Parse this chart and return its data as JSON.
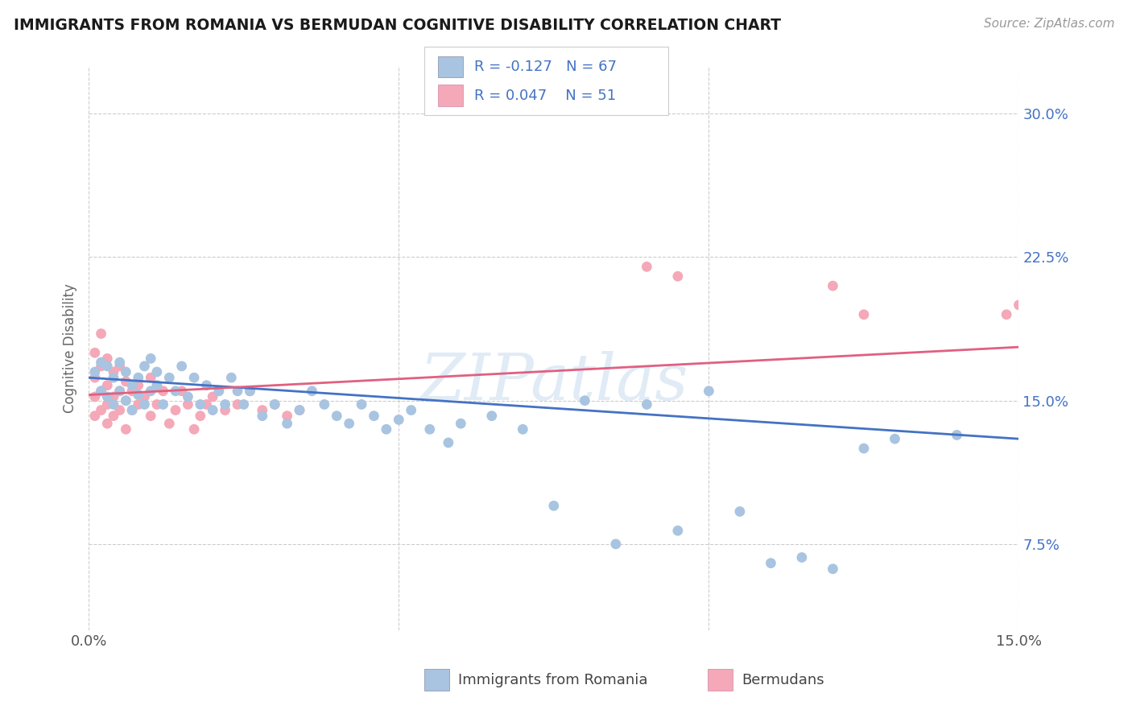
{
  "title": "IMMIGRANTS FROM ROMANIA VS BERMUDAN COGNITIVE DISABILITY CORRELATION CHART",
  "source": "Source: ZipAtlas.com",
  "ylabel": "Cognitive Disability",
  "xlim": [
    0.0,
    0.15
  ],
  "ylim": [
    0.03,
    0.325
  ],
  "xticks": [
    0.0,
    0.05,
    0.1,
    0.15
  ],
  "xticklabels": [
    "0.0%",
    "",
    "",
    "15.0%"
  ],
  "yticks": [
    0.075,
    0.15,
    0.225,
    0.3
  ],
  "yticklabels": [
    "7.5%",
    "15.0%",
    "22.5%",
    "30.0%"
  ],
  "color_romania": "#a8c4e0",
  "color_bermuda": "#f4a8b8",
  "trendline_romania_color": "#4472c4",
  "trendline_bermuda_color": "#e06080",
  "background_color": "#ffffff",
  "grid_color": "#cccccc",
  "romania_trendline": [
    0.162,
    0.13
  ],
  "bermuda_trendline": [
    0.153,
    0.178
  ],
  "romania_x": [
    0.001,
    0.002,
    0.002,
    0.003,
    0.003,
    0.004,
    0.004,
    0.005,
    0.005,
    0.006,
    0.006,
    0.007,
    0.007,
    0.008,
    0.008,
    0.009,
    0.009,
    0.01,
    0.01,
    0.011,
    0.011,
    0.012,
    0.013,
    0.014,
    0.015,
    0.016,
    0.017,
    0.018,
    0.019,
    0.02,
    0.021,
    0.022,
    0.023,
    0.024,
    0.025,
    0.026,
    0.028,
    0.03,
    0.032,
    0.034,
    0.036,
    0.038,
    0.04,
    0.042,
    0.044,
    0.046,
    0.048,
    0.05,
    0.052,
    0.055,
    0.058,
    0.06,
    0.065,
    0.07,
    0.075,
    0.08,
    0.085,
    0.09,
    0.095,
    0.1,
    0.105,
    0.11,
    0.115,
    0.12,
    0.125,
    0.13,
    0.14
  ],
  "romania_y": [
    0.165,
    0.17,
    0.155,
    0.168,
    0.152,
    0.162,
    0.148,
    0.17,
    0.155,
    0.165,
    0.15,
    0.158,
    0.145,
    0.162,
    0.153,
    0.168,
    0.148,
    0.172,
    0.155,
    0.165,
    0.158,
    0.148,
    0.162,
    0.155,
    0.168,
    0.152,
    0.162,
    0.148,
    0.158,
    0.145,
    0.155,
    0.148,
    0.162,
    0.155,
    0.148,
    0.155,
    0.142,
    0.148,
    0.138,
    0.145,
    0.155,
    0.148,
    0.142,
    0.138,
    0.148,
    0.142,
    0.135,
    0.14,
    0.145,
    0.135,
    0.128,
    0.138,
    0.142,
    0.135,
    0.095,
    0.15,
    0.075,
    0.148,
    0.082,
    0.155,
    0.092,
    0.065,
    0.068,
    0.062,
    0.125,
    0.13,
    0.132
  ],
  "bermuda_x": [
    0.001,
    0.001,
    0.001,
    0.001,
    0.002,
    0.002,
    0.002,
    0.002,
    0.003,
    0.003,
    0.003,
    0.003,
    0.004,
    0.004,
    0.004,
    0.005,
    0.005,
    0.005,
    0.006,
    0.006,
    0.006,
    0.007,
    0.007,
    0.008,
    0.008,
    0.009,
    0.01,
    0.01,
    0.011,
    0.012,
    0.013,
    0.014,
    0.015,
    0.016,
    0.017,
    0.018,
    0.019,
    0.02,
    0.022,
    0.024,
    0.026,
    0.028,
    0.03,
    0.032,
    0.034,
    0.09,
    0.095,
    0.12,
    0.125,
    0.148,
    0.15
  ],
  "bermuda_y": [
    0.175,
    0.162,
    0.152,
    0.142,
    0.185,
    0.168,
    0.155,
    0.145,
    0.172,
    0.158,
    0.148,
    0.138,
    0.165,
    0.152,
    0.142,
    0.168,
    0.155,
    0.145,
    0.16,
    0.15,
    0.135,
    0.155,
    0.145,
    0.158,
    0.148,
    0.152,
    0.162,
    0.142,
    0.148,
    0.155,
    0.138,
    0.145,
    0.155,
    0.148,
    0.135,
    0.142,
    0.148,
    0.152,
    0.145,
    0.148,
    0.155,
    0.145,
    0.148,
    0.142,
    0.145,
    0.22,
    0.215,
    0.21,
    0.195,
    0.195,
    0.2
  ]
}
